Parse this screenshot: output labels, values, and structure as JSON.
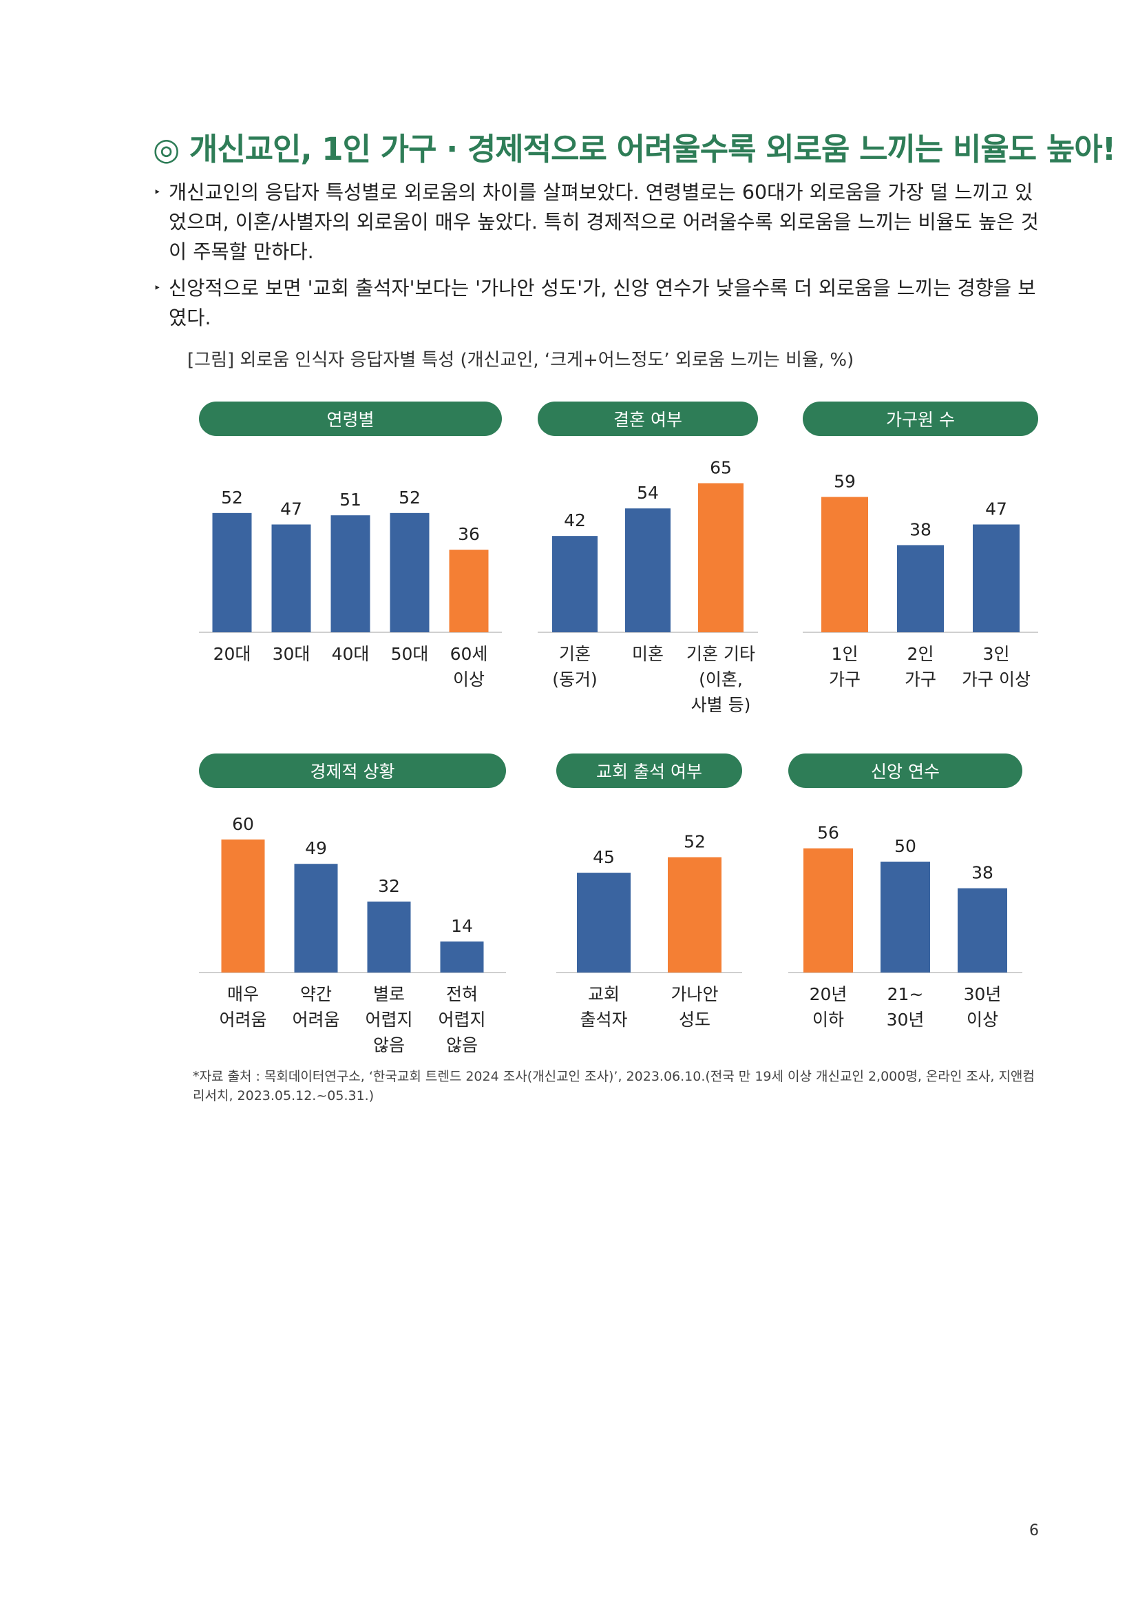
{
  "title": "◎ 개신교인, 1인 가구 · 경제적으로 어려울수록 외로움 느끼는 비율도 높아!",
  "bullets": [
    "개신교인의 응답자 특성별로 외로움의 차이를 살펴보았다. 연령별로는 60대가 외로움을 가장 덜 느끼고 있었으며, 이혼/사별자의 외로움이 매우 높았다. 특히 경제적으로 어려울수록 외로움을 느끼는 비율도 높은 것이 주목할 만하다.",
    "신앙적으로 보면 '교회 출석자'보다는 '가나안 성도'가, 신앙 연수가 낮을수록 더 외로움을 느끼는 경향을 보였다."
  ],
  "bullet_marker": "‣",
  "figure_caption": "[그림] 외로움 인식자 응답자별 특성 (개신교인, ‘크게+어느정도’ 외로움 느끼는 비율, %)",
  "colors": {
    "blue": "#3a64a0",
    "orange": "#f47f34",
    "green": "#2e7d57",
    "axis": "#cfcfcf"
  },
  "chart_data": [
    {
      "type": "bar",
      "title": "연령별",
      "categories": [
        [
          "20대"
        ],
        [
          "30대"
        ],
        [
          "40대"
        ],
        [
          "50대"
        ],
        [
          "60세",
          "이상"
        ]
      ],
      "values": [
        52,
        47,
        51,
        52,
        36
      ],
      "highlight": [
        4
      ]
    },
    {
      "type": "bar",
      "title": "결혼 여부",
      "categories": [
        [
          "기혼",
          "(동거)"
        ],
        [
          "미혼"
        ],
        [
          "기혼 기타",
          "(이혼,",
          "사별 등)"
        ]
      ],
      "values": [
        42,
        54,
        65
      ],
      "highlight": [
        2
      ]
    },
    {
      "type": "bar",
      "title": "가구원 수",
      "categories": [
        [
          "1인",
          "가구"
        ],
        [
          "2인",
          "가구"
        ],
        [
          "3인",
          "가구 이상"
        ]
      ],
      "values": [
        59,
        38,
        47
      ],
      "highlight": [
        0
      ]
    },
    {
      "type": "bar",
      "title": "경제적 상황",
      "categories": [
        [
          "매우",
          "어려움"
        ],
        [
          "약간",
          "어려움"
        ],
        [
          "별로",
          "어렵지",
          "않음"
        ],
        [
          "전혀",
          "어렵지",
          "않음"
        ]
      ],
      "values": [
        60,
        49,
        32,
        14
      ],
      "highlight": [
        0
      ]
    },
    {
      "type": "bar",
      "title": "교회 출석 여부",
      "categories": [
        [
          "교회",
          "출석자"
        ],
        [
          "가나안",
          "성도"
        ]
      ],
      "values": [
        45,
        52
      ],
      "highlight": [
        1
      ]
    },
    {
      "type": "bar",
      "title": "신앙 연수",
      "categories": [
        [
          "20년",
          "이하"
        ],
        [
          "21~",
          "30년"
        ],
        [
          "30년",
          "이상"
        ]
      ],
      "values": [
        56,
        50,
        38
      ],
      "highlight": [
        0
      ]
    }
  ],
  "source_note": "*자료 출처 : 목회데이터연구소, ‘한국교회 트렌드 2024 조사(개신교인 조사)’, 2023.06.10.(전국 만 19세 이상 개신교인 2,000명, 온라인 조사, 지앤컴리서치, 2023.05.12.~05.31.)",
  "page_number": "6"
}
